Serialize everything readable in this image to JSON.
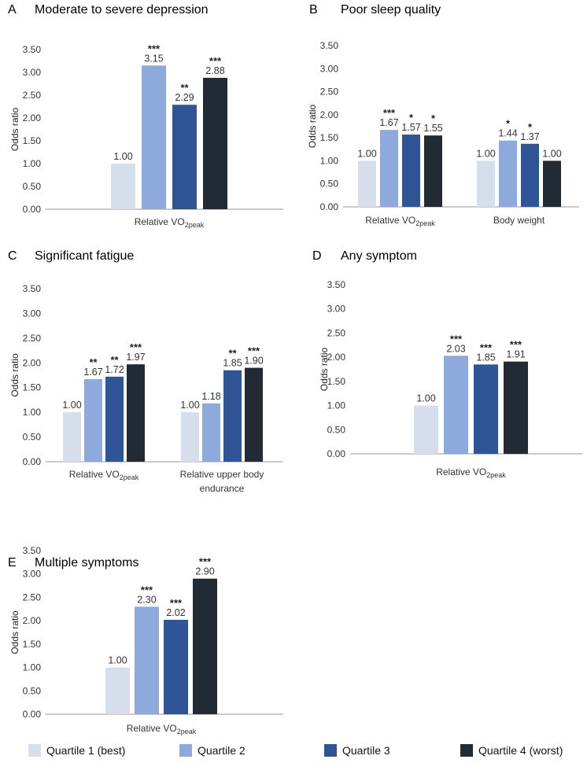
{
  "colors": {
    "q1": "#D6DEEB",
    "q2": "#8EA9DB",
    "q3": "#2F5597",
    "q4": "#222A35"
  },
  "legend": [
    {
      "label": "Quartile 1 (best)",
      "color": "#D6DEEB"
    },
    {
      "label": "Quartile 2",
      "color": "#8EA9DB"
    },
    {
      "label": "Quartile 3",
      "color": "#2F5597"
    },
    {
      "label": "Quartile 4 (worst)",
      "color": "#222A35"
    }
  ],
  "chart_data": [
    {
      "type": "bar",
      "panel": "A",
      "title": "Moderate to severe depression",
      "ylabel": "Odds ratio",
      "ylim": [
        0,
        3.5
      ],
      "yticks": [
        "0.00",
        "0.50",
        "1.00",
        "1.50",
        "2.00",
        "2.50",
        "3.00",
        "3.50"
      ],
      "groups": [
        {
          "label": [
            "Relative VO2peak"
          ],
          "values": [
            1.0,
            3.15,
            2.29,
            2.88
          ],
          "labels": [
            "1.00",
            "3.15",
            "2.29",
            "2.88"
          ],
          "stars": [
            "",
            "***",
            "**",
            "***"
          ]
        }
      ]
    },
    {
      "type": "bar",
      "panel": "B",
      "title": "Poor sleep quality",
      "ylabel": "Odds ratio",
      "ylim": [
        0,
        3.5
      ],
      "yticks": [
        "0.00",
        "0.50",
        "1.00",
        "1.50",
        "2.00",
        "2.50",
        "3.00",
        "3.50"
      ],
      "groups": [
        {
          "label": [
            "Relative VO2peak"
          ],
          "values": [
            1.0,
            1.67,
            1.57,
            1.55
          ],
          "labels": [
            "1.00",
            "1.67",
            "1.57",
            "1.55"
          ],
          "stars": [
            "",
            "***",
            "*",
            "*"
          ]
        },
        {
          "label": [
            "Body weight"
          ],
          "values": [
            1.0,
            1.44,
            1.37,
            1.0
          ],
          "labels": [
            "1.00",
            "1.44",
            "1.37",
            "1.00"
          ],
          "stars": [
            "",
            "*",
            "*",
            ""
          ]
        }
      ]
    },
    {
      "type": "bar",
      "panel": "C",
      "title": "Significant fatigue",
      "ylabel": "Odds ratio",
      "ylim": [
        0,
        3.5
      ],
      "yticks": [
        "0.00",
        "0.50",
        "1.00",
        "1.50",
        "2.00",
        "2.50",
        "3.00",
        "3.50"
      ],
      "groups": [
        {
          "label": [
            "Relative VO2peak"
          ],
          "values": [
            1.0,
            1.67,
            1.72,
            1.97
          ],
          "labels": [
            "1.00",
            "1.67",
            "1.72",
            "1.97"
          ],
          "stars": [
            "",
            "**",
            "**",
            "***"
          ]
        },
        {
          "label": [
            "Relative upper body",
            "endurance"
          ],
          "values": [
            1.0,
            1.18,
            1.85,
            1.9
          ],
          "labels": [
            "1.00",
            "1.18",
            "1.85",
            "1.90"
          ],
          "stars": [
            "",
            "",
            "**",
            "***"
          ]
        }
      ]
    },
    {
      "type": "bar",
      "panel": "D",
      "title": "Any symptom",
      "ylabel": "Odds ratio",
      "ylim": [
        0,
        3.5
      ],
      "yticks": [
        "0.00",
        "0.50",
        "1.00",
        "1.50",
        "2.00",
        "2.50",
        "3.00",
        "3.50"
      ],
      "groups": [
        {
          "label": [
            "Relative VO2peak"
          ],
          "values": [
            1.0,
            2.03,
            1.85,
            1.91
          ],
          "labels": [
            "1.00",
            "2.03",
            "1.85",
            "1.91"
          ],
          "stars": [
            "",
            "***",
            "***",
            "***"
          ]
        }
      ]
    },
    {
      "type": "bar",
      "panel": "E",
      "title": "Multiple symptoms",
      "ylabel": "Odds ratio",
      "ylim": [
        0,
        3.5
      ],
      "yticks": [
        "0.00",
        "0.50",
        "1.00",
        "1.50",
        "2.00",
        "2.50",
        "3.00",
        "3.50"
      ],
      "groups": [
        {
          "label": [
            "Relative VO2peak"
          ],
          "values": [
            1.0,
            2.3,
            2.02,
            2.9
          ],
          "labels": [
            "1.00",
            "2.30",
            "2.02",
            "2.90"
          ],
          "stars": [
            "",
            "***",
            "***",
            "***"
          ]
        }
      ]
    }
  ]
}
